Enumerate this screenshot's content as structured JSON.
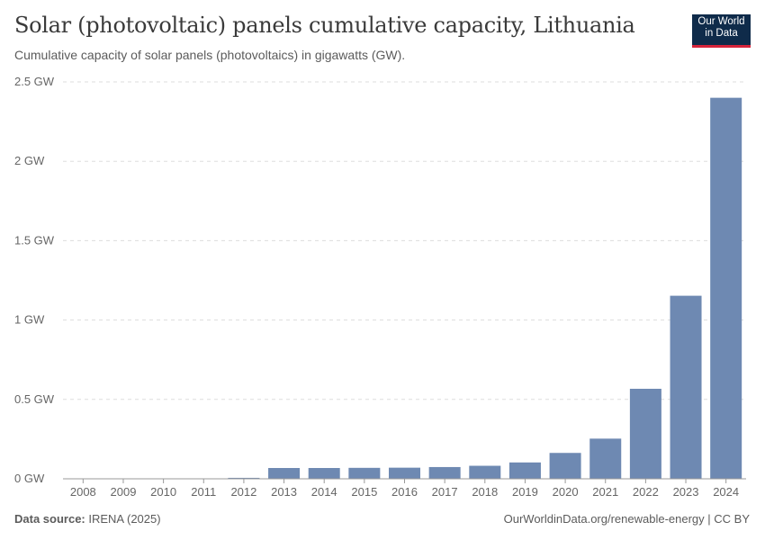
{
  "header": {
    "title": "Solar (photovoltaic) panels cumulative capacity, Lithuania",
    "subtitle": "Cumulative capacity of solar panels (photovoltaics) in gigawatts (GW).",
    "logo_line1": "Our World",
    "logo_line2": "in Data"
  },
  "footer": {
    "source_label": "Data source:",
    "source_value": "IRENA (2025)",
    "credit": "OurWorldinData.org/renewable-energy | CC BY"
  },
  "colors": {
    "bar": "#6e89b2",
    "grid": "#dddddd",
    "axis": "#999999"
  },
  "chart_data": {
    "type": "bar",
    "title": "Solar (photovoltaic) panels cumulative capacity, Lithuania",
    "xlabel": "",
    "ylabel": "GW",
    "categories": [
      "2008",
      "2009",
      "2010",
      "2011",
      "2012",
      "2013",
      "2014",
      "2015",
      "2016",
      "2017",
      "2018",
      "2019",
      "2020",
      "2021",
      "2022",
      "2023",
      "2024"
    ],
    "values": [
      0.0001,
      0.0001,
      0.0001,
      0.0003,
      0.006,
      0.068,
      0.068,
      0.069,
      0.07,
      0.074,
      0.082,
      0.103,
      0.163,
      0.253,
      0.567,
      1.153,
      2.4
    ],
    "ylim": [
      0,
      2.5
    ],
    "yticks": [
      {
        "value": 0,
        "label": "0 GW"
      },
      {
        "value": 0.5,
        "label": "0.5 GW"
      },
      {
        "value": 1,
        "label": "1 GW"
      },
      {
        "value": 1.5,
        "label": "1.5 GW"
      },
      {
        "value": 2,
        "label": "2 GW"
      },
      {
        "value": 2.5,
        "label": "2.5 GW"
      }
    ],
    "grid": true
  }
}
